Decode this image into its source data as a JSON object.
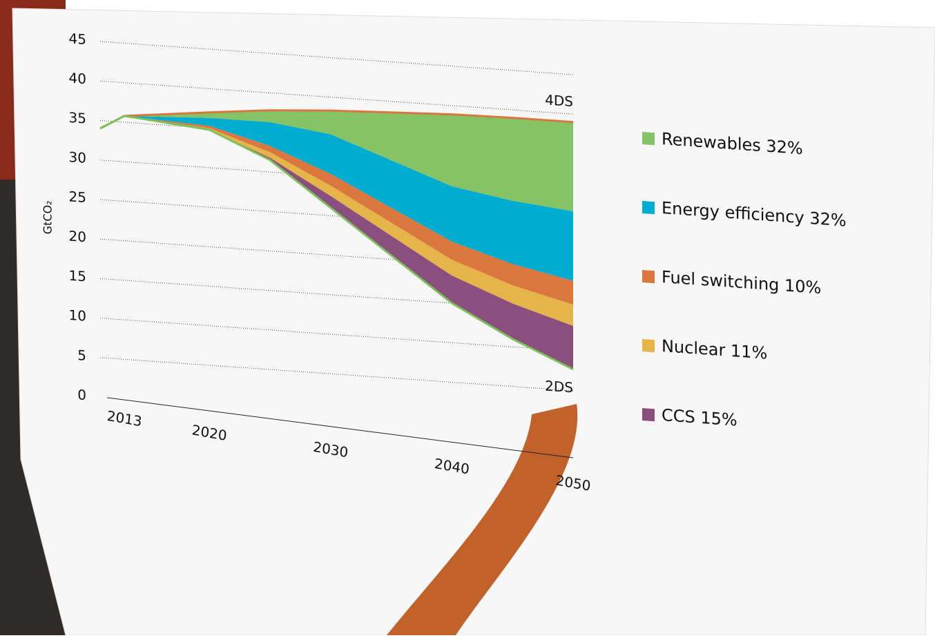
{
  "chart_data": {
    "type": "stacked_area",
    "y_label": "GtCO₂",
    "x": [
      2011,
      2013,
      2020,
      2025,
      2030,
      2040,
      2045,
      2050
    ],
    "xlim": [
      2011,
      2050
    ],
    "xticks": [
      2013,
      2020,
      2030,
      2040,
      2050
    ],
    "ylim": [
      0,
      45
    ],
    "yticks": [
      0,
      5,
      10,
      15,
      20,
      25,
      30,
      35,
      40,
      45
    ],
    "grid": true,
    "lower_line": {
      "label": "2DS",
      "color": "#7dc15b",
      "values": [
        34,
        35.8,
        34.8,
        31.5,
        26,
        15,
        11,
        7.7
      ]
    },
    "upper_label": "4DS",
    "upper_color": "#d9773f",
    "series": [
      {
        "name": "CCS 15%",
        "color": "#8b4f7f",
        "values": [
          0,
          0,
          0,
          0.3,
          1.5,
          3.5,
          4.5,
          5.5
        ]
      },
      {
        "name": "Nuclear 11%",
        "color": "#e6b54a",
        "values": [
          0,
          0,
          0.2,
          0.7,
          1.3,
          2,
          2.3,
          2.7
        ]
      },
      {
        "name": "Fuel switching 10%",
        "color": "#d9773f",
        "values": [
          0,
          0,
          0.3,
          0.8,
          1.5,
          2.3,
          2.7,
          3
        ]
      },
      {
        "name": "Energy efficiency 32%",
        "color": "#00acd0",
        "values": [
          0,
          0,
          1,
          3,
          5,
          7,
          8,
          8.8
        ]
      },
      {
        "name": "Renewables 32%",
        "color": "#86c266",
        "values": [
          0,
          0,
          0.7,
          1.5,
          3,
          9.1,
          10.5,
          11.3
        ]
      }
    ]
  }
}
